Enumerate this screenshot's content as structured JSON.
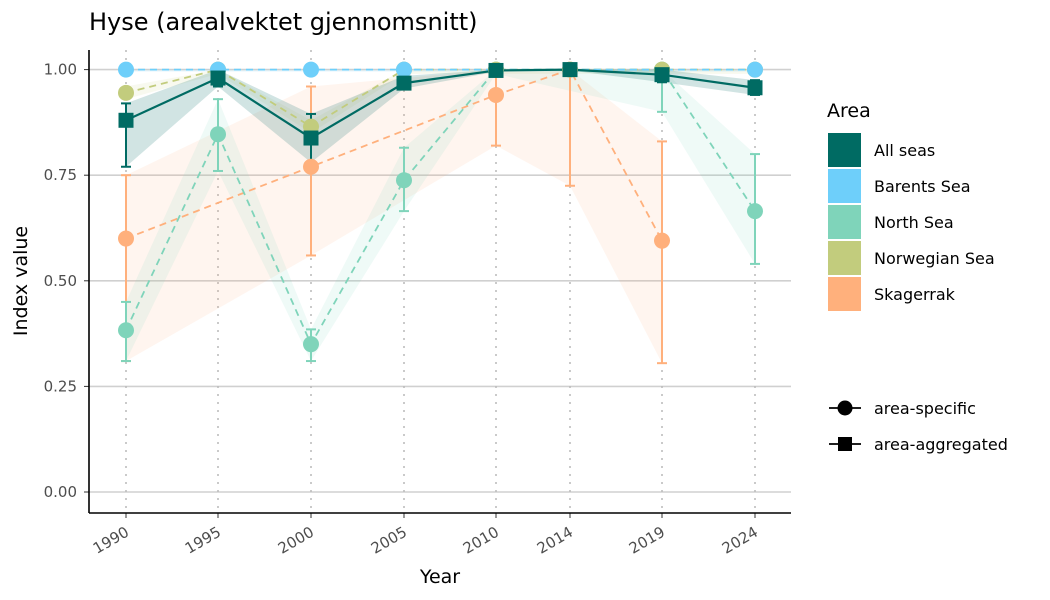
{
  "chart_data": {
    "type": "line",
    "title": "Hyse (arealvektet gjennomsnitt)",
    "xlabel": "Year",
    "ylabel": "Index value",
    "categories": [
      "1990",
      "1995",
      "2000",
      "2005",
      "2010",
      "2014",
      "2019",
      "2024"
    ],
    "ylim": [
      0,
      1.05
    ],
    "yticks": [
      "0.00",
      "0.25",
      "0.50",
      "0.75",
      "1.00"
    ],
    "ytick_values": [
      0,
      0.25,
      0.5,
      0.75,
      1.0
    ],
    "legend_title": "Area",
    "legend_position": "right",
    "series": [
      {
        "name": "Skagerrak",
        "color": "#FFB07C",
        "shape": "area-specific",
        "line": "dashed",
        "values": [
          0.6,
          null,
          0.77,
          null,
          0.94,
          1.0,
          0.595,
          null
        ],
        "lower": [
          0.31,
          null,
          0.56,
          null,
          0.82,
          0.725,
          0.305,
          null
        ],
        "upper": [
          0.75,
          null,
          0.96,
          null,
          1.0,
          1.0,
          0.83,
          null
        ],
        "errorbars": true
      },
      {
        "name": "North Sea",
        "color": "#7FD4BA",
        "shape": "area-specific",
        "line": "dashed",
        "values": [
          0.383,
          0.847,
          0.35,
          0.738,
          1.0,
          null,
          1.0,
          0.665
        ],
        "lower": [
          0.31,
          0.76,
          0.31,
          0.665,
          0.99,
          null,
          0.9,
          0.54
        ],
        "upper": [
          0.45,
          0.93,
          0.385,
          0.815,
          1.0,
          null,
          1.0,
          0.8
        ],
        "errorbars": true
      },
      {
        "name": "Norwegian Sea",
        "color": "#C2CC7D",
        "shape": "area-specific",
        "line": "dashed",
        "values": [
          0.945,
          1.0,
          0.865,
          1.0,
          1.0,
          1.0,
          1.0,
          1.0
        ],
        "lower": [
          0.93,
          0.99,
          0.85,
          0.99,
          0.99,
          0.99,
          0.99,
          0.99
        ],
        "upper": [
          0.96,
          1.0,
          0.88,
          1.0,
          1.0,
          1.0,
          1.0,
          1.0
        ],
        "errorbars": false
      },
      {
        "name": "Barents Sea",
        "color": "#6ECFFA",
        "shape": "area-specific",
        "line": "dashed",
        "values": [
          1.0,
          1.0,
          1.0,
          1.0,
          null,
          null,
          null,
          1.0
        ],
        "lower": [
          0.995,
          0.995,
          0.995,
          0.995,
          null,
          null,
          null,
          0.995
        ],
        "upper": [
          1.0,
          1.0,
          1.0,
          1.0,
          null,
          null,
          null,
          1.0
        ],
        "errorbars": false
      },
      {
        "name": "All seas",
        "color": "#006B63",
        "shape": "area-aggregated",
        "line": "solid",
        "values": [
          0.88,
          0.98,
          0.838,
          0.968,
          0.998,
          1.0,
          0.988,
          0.957
        ],
        "lower": [
          0.77,
          0.96,
          0.78,
          0.955,
          0.995,
          0.998,
          0.97,
          0.94
        ],
        "upper": [
          0.92,
          1.0,
          0.895,
          0.985,
          1.0,
          1.0,
          1.0,
          0.975
        ],
        "errorbars": true
      }
    ],
    "legend_order": [
      "All seas",
      "Barents Sea",
      "North Sea",
      "Norwegian Sea",
      "Skagerrak"
    ],
    "shape_legend": [
      {
        "label": "area-specific",
        "marker": "circle"
      },
      {
        "label": "area-aggregated",
        "marker": "square"
      }
    ]
  }
}
